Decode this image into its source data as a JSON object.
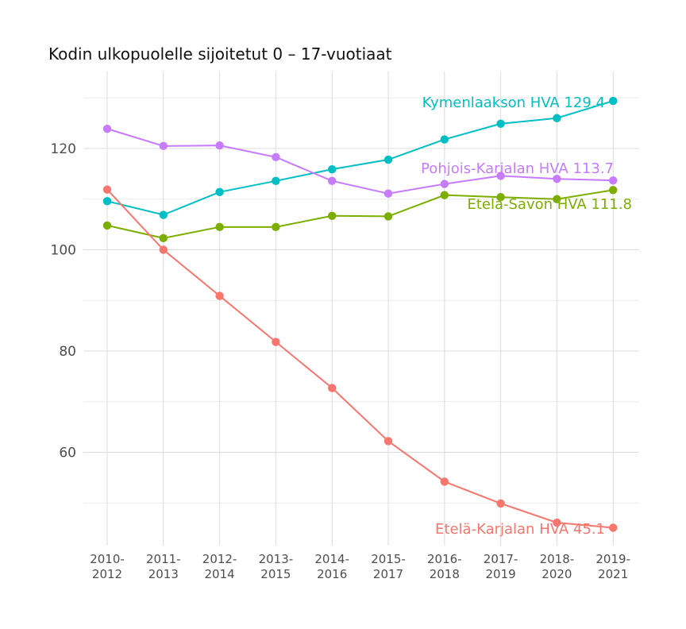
{
  "chart_data": {
    "type": "line",
    "title": "Kodin ulkopuolelle sijoitetut 0 – 17-vuotiaat",
    "xlabel": "",
    "ylabel": "",
    "categories": [
      "2010-2012",
      "2011-2013",
      "2012-2014",
      "2013-2015",
      "2014-2016",
      "2015-2017",
      "2016-2018",
      "2017-2019",
      "2018-2020",
      "2019-2021"
    ],
    "x_tick_labels": [
      [
        "2010-",
        "2012"
      ],
      [
        "2011-",
        "2013"
      ],
      [
        "2012-",
        "2014"
      ],
      [
        "2013-",
        "2015"
      ],
      [
        "2014-",
        "2016"
      ],
      [
        "2015-",
        "2017"
      ],
      [
        "2016-",
        "2018"
      ],
      [
        "2017-",
        "2019"
      ],
      [
        "2018-",
        "2020"
      ],
      [
        "2019-",
        "2021"
      ]
    ],
    "y_ticks": [
      60,
      80,
      100,
      120
    ],
    "ylim": [
      43,
      132
    ],
    "grid": true,
    "legend": "none",
    "series": [
      {
        "name": "Kymenlaakson HVA",
        "color": "#00BFC4",
        "values": [
          109.6,
          106.9,
          111.4,
          113.6,
          115.9,
          117.8,
          121.8,
          124.9,
          126.0,
          129.4
        ],
        "end_label": "Kymenlaakson HVA 129.4"
      },
      {
        "name": "Pohjois-Karjalan HVA",
        "color": "#C77CFF",
        "values": [
          123.9,
          120.5,
          120.6,
          118.3,
          113.6,
          111.1,
          113.0,
          114.6,
          114.0,
          113.7
        ],
        "end_label": "Pohjois-Karjalan HVA 113.7"
      },
      {
        "name": "Etelä-Savon HVA",
        "color": "#7CAE00",
        "values": [
          104.8,
          102.3,
          104.5,
          104.5,
          106.7,
          106.6,
          110.8,
          110.4,
          110.0,
          111.8
        ],
        "end_label": "Etelä-Savon HVA 111.8"
      },
      {
        "name": "Etelä-Karjalan HVA",
        "color": "#F8766D",
        "values": [
          111.9,
          100.0,
          90.9,
          81.8,
          72.7,
          62.2,
          54.2,
          49.9,
          46.1,
          45.1
        ],
        "end_label": "Etelä-Karjalan HVA 45.1"
      }
    ]
  }
}
